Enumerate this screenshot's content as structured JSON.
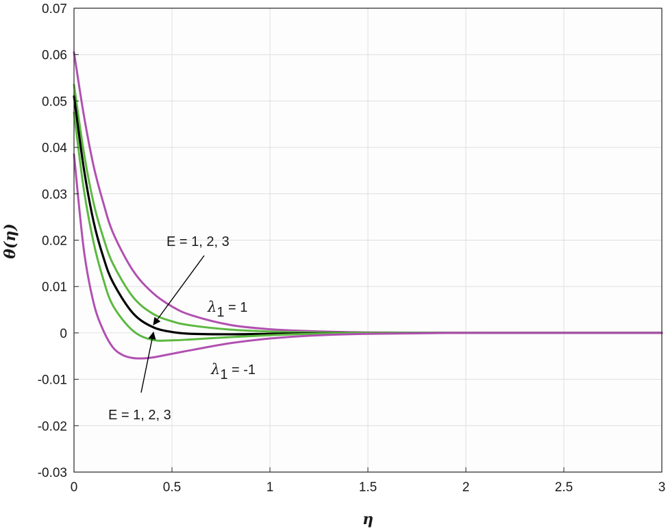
{
  "chart_data": {
    "type": "line",
    "xlabel": "η",
    "ylabel": "θ(η)",
    "xlim": [
      0,
      3
    ],
    "ylim": [
      -0.03,
      0.07
    ],
    "grid": true,
    "x_ticks": [
      0,
      0.5,
      1,
      1.5,
      2,
      2.5,
      3
    ],
    "x_tick_labels": [
      "0",
      "0.5",
      "1",
      "1.5",
      "2",
      "2.5",
      "3"
    ],
    "y_ticks": [
      -0.03,
      -0.02,
      -0.01,
      0,
      0.01,
      0.02,
      0.03,
      0.04,
      0.05,
      0.06,
      0.07
    ],
    "y_tick_labels": [
      "-0.03",
      "-0.02",
      "-0.01",
      "0",
      "0.01",
      "0.02",
      "0.03",
      "0.04",
      "0.05",
      "0.06",
      "0.07"
    ],
    "series": [
      {
        "color": "#b050b0",
        "x": [
          0,
          0.05,
          0.1,
          0.15,
          0.2,
          0.3,
          0.4,
          0.5,
          0.6,
          0.8,
          1.0,
          1.2,
          1.5,
          2.0,
          2.5,
          3.0
        ],
        "y": [
          0.0605,
          0.047,
          0.036,
          0.028,
          0.0215,
          0.0135,
          0.0087,
          0.0057,
          0.0038,
          0.0017,
          0.0008,
          0.0004,
          0.0001,
          0,
          0,
          0
        ]
      },
      {
        "color": "#5cb840",
        "x": [
          0,
          0.05,
          0.1,
          0.15,
          0.2,
          0.3,
          0.4,
          0.5,
          0.6,
          0.8,
          1.0,
          1.2,
          1.5,
          2.0,
          2.5,
          3.0
        ],
        "y": [
          0.0535,
          0.039,
          0.028,
          0.0205,
          0.0148,
          0.0078,
          0.0042,
          0.0025,
          0.0016,
          0.0007,
          0.0003,
          0.0001,
          0,
          0,
          0,
          0
        ]
      },
      {
        "color": "#000000",
        "x": [
          0,
          0.05,
          0.1,
          0.15,
          0.2,
          0.3,
          0.4,
          0.5,
          0.6,
          0.8,
          1.0,
          1.2,
          1.5,
          2.0,
          2.5,
          3.0
        ],
        "y": [
          0.051,
          0.0355,
          0.024,
          0.0163,
          0.0108,
          0.0043,
          0.0013,
          0.0002,
          -0.0002,
          -0.0003,
          -0.0002,
          -0.0001,
          0,
          0,
          0,
          0
        ]
      },
      {
        "color": "#5cb840",
        "x": [
          0,
          0.05,
          0.1,
          0.15,
          0.2,
          0.3,
          0.4,
          0.5,
          0.6,
          0.8,
          1.0,
          1.2,
          1.5,
          2.0,
          2.5,
          3.0
        ],
        "y": [
          0.0475,
          0.031,
          0.0195,
          0.0115,
          0.0058,
          0.0005,
          -0.0015,
          -0.0016,
          -0.0014,
          -0.0009,
          -0.0005,
          -0.0002,
          0,
          0,
          0,
          0
        ]
      },
      {
        "color": "#b050b0",
        "x": [
          0,
          0.05,
          0.1,
          0.15,
          0.2,
          0.25,
          0.3,
          0.35,
          0.4,
          0.5,
          0.6,
          0.8,
          1.0,
          1.2,
          1.5,
          2.0,
          2.5,
          3.0
        ],
        "y": [
          0.0385,
          0.018,
          0.0065,
          0.0005,
          -0.0032,
          -0.0048,
          -0.0054,
          -0.0055,
          -0.0053,
          -0.0045,
          -0.0037,
          -0.0022,
          -0.0012,
          -0.0006,
          -0.0002,
          0,
          0,
          0
        ]
      }
    ],
    "annotations": {
      "e_upper": "E = 1, 2, 3",
      "e_lower": "E = 1, 2, 3",
      "lambda_pos_sym": "λ",
      "lambda_pos_sub": "1",
      "lambda_pos_val": " = 1",
      "lambda_neg_sym": "λ",
      "lambda_neg_sub": "1",
      "lambda_neg_val": " = -1"
    }
  }
}
